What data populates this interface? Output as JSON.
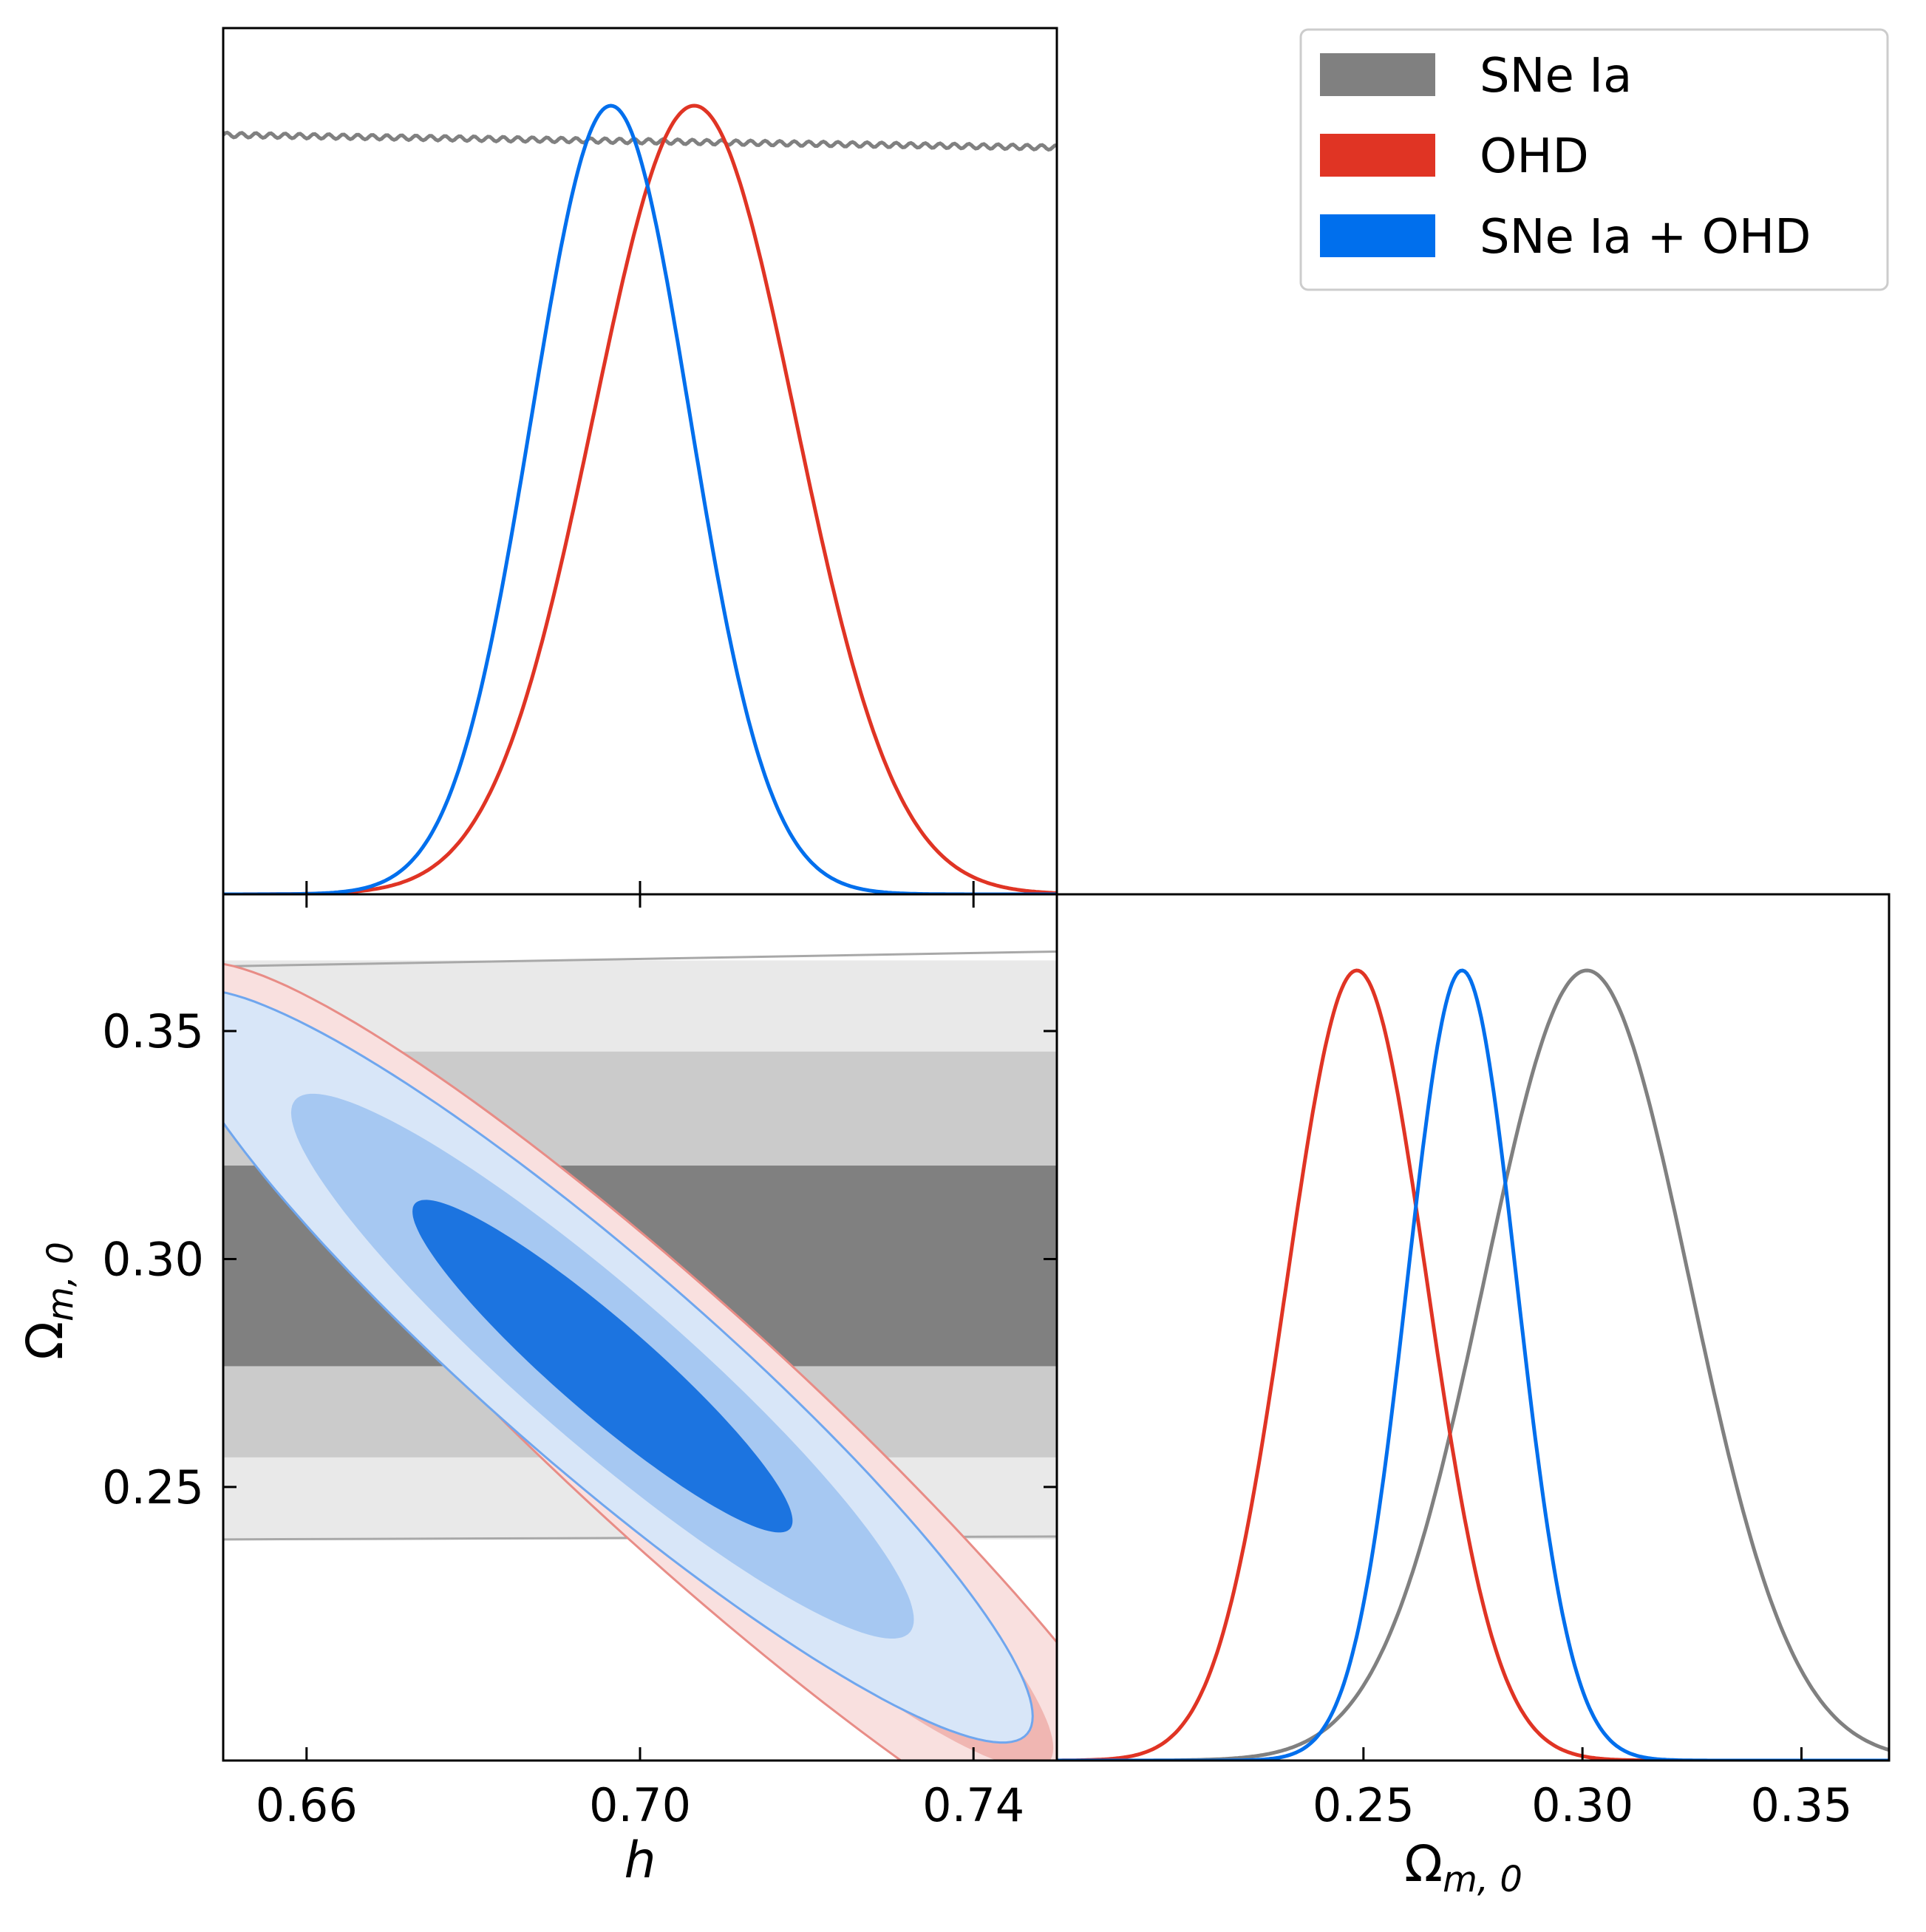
{
  "chart_data": {
    "type": "corner",
    "parameters": [
      {
        "name": "h",
        "range": [
          0.65,
          0.75
        ],
        "ticks": [
          "0.66",
          "0.70",
          "0.74"
        ],
        "tick_values": [
          0.66,
          0.7,
          0.74
        ]
      },
      {
        "name": "Ω_{m,0}",
        "range": [
          0.19,
          0.38
        ],
        "ticks": [
          "0.25",
          "0.30",
          "0.35"
        ],
        "tick_values": [
          0.25,
          0.3,
          0.35
        ]
      }
    ],
    "omega_marginal_range": [
      0.18,
      0.37
    ],
    "labels": {
      "x_h": "h",
      "x_omega_base": "Ω",
      "x_omega_sub": "m, 0",
      "y_omega_base": "Ω",
      "y_omega_sub": "m, 0"
    },
    "legend": {
      "placement": "top-right",
      "entries": [
        {
          "label": "SNe Ia",
          "color": "#808080"
        },
        {
          "label": "OHD",
          "color": "#e03424"
        },
        {
          "label": "SNe Ia + OHD",
          "color": "#006fed"
        }
      ]
    },
    "series": [
      {
        "id": "snia",
        "color": "#808080",
        "h_marginal": {
          "type": "flat",
          "level": 0.955,
          "slope": -0.16
        },
        "omega_marginal": {
          "mean": 0.301,
          "sigma": 0.0235
        },
        "contours_2d": {
          "type": "bands",
          "sigma1": [
            0.2765,
            0.3205
          ],
          "sigma2": [
            0.2565,
            0.3455
          ],
          "sigma3": [
            0.2385,
            0.3655
          ],
          "fills": [
            "#808080",
            "#cbcbcb",
            "#e9e9e9"
          ]
        }
      },
      {
        "id": "ohd",
        "color": "#e03424",
        "h_marginal": {
          "mean": 0.7065,
          "sigma": 0.0121
        },
        "omega_marginal": {
          "mean": 0.2485,
          "sigma": 0.016
        },
        "contours_2d": {
          "type": "ellipse",
          "center": [
            0.7055,
            0.2625
          ],
          "sd": [
            0.0177,
            0.0298
          ],
          "corr": -0.94,
          "levels": [
            1.52,
            2.49,
            3.44
          ],
          "fills": [
            "#e78a84",
            "#f0b6b2",
            "#f9e0df"
          ],
          "stroke": "#e88c86"
        }
      },
      {
        "id": "combined",
        "color": "#006fed",
        "h_marginal": {
          "mean": 0.6965,
          "sigma": 0.0095
        },
        "omega_marginal": {
          "mean": 0.2725,
          "sigma": 0.0125
        },
        "contours_2d": {
          "type": "ellipse",
          "center": [
            0.6955,
            0.2765
          ],
          "sd": [
            0.015,
            0.024
          ],
          "corr": -0.93,
          "levels": [
            1.52,
            2.49,
            3.44
          ],
          "fills": [
            "#1c74e0",
            "#a6c8f2",
            "#d8e6f8"
          ],
          "stroke": "#6fa6ee"
        }
      }
    ]
  }
}
